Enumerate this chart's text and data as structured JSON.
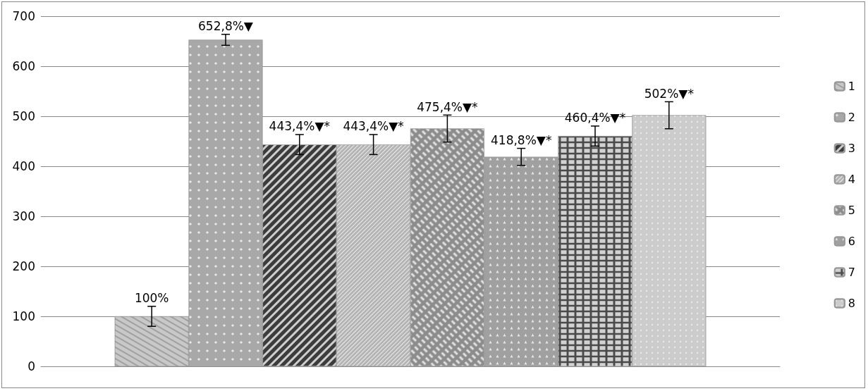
{
  "chart_data": {
    "type": "bar",
    "categories": [
      null
    ],
    "series": [
      {
        "name": "1",
        "color": "#c8c8c8",
        "values": [
          100
        ],
        "errors": [
          20
        ],
        "value_labels": [
          "100%"
        ]
      },
      {
        "name": "2",
        "color": "#a8a8a8",
        "values": [
          652.8
        ],
        "errors": [
          11
        ],
        "value_labels": [
          "652,8%▼"
        ]
      },
      {
        "name": "3",
        "color": "#3c3c3c",
        "values": [
          443.4
        ],
        "errors": [
          20
        ],
        "value_labels": [
          "443,4%▼*"
        ]
      },
      {
        "name": "4",
        "color": "#b4b4b4",
        "values": [
          443.4
        ],
        "errors": [
          20
        ],
        "value_labels": [
          "443,4%▼*"
        ]
      },
      {
        "name": "5",
        "color": "#8c8c8c",
        "values": [
          475.4
        ],
        "errors": [
          27
        ],
        "value_labels": [
          "475,4%▼*"
        ]
      },
      {
        "name": "6",
        "color": "#a0a0a0",
        "values": [
          418.8
        ],
        "errors": [
          17
        ],
        "value_labels": [
          "418,8%▼*"
        ]
      },
      {
        "name": "7",
        "color": "#4a4a4a",
        "values": [
          460.4
        ],
        "errors": [
          20
        ],
        "value_labels": [
          "460,4%▼*"
        ]
      },
      {
        "name": "8",
        "color": "#cccccc",
        "values": [
          502
        ],
        "errors": [
          27
        ],
        "value_labels": [
          "502%▼*"
        ]
      }
    ],
    "ylim": [
      0,
      700
    ],
    "yticks": [
      0,
      100,
      200,
      300,
      400,
      500,
      600,
      700
    ],
    "grid": "y",
    "legend": "right"
  }
}
